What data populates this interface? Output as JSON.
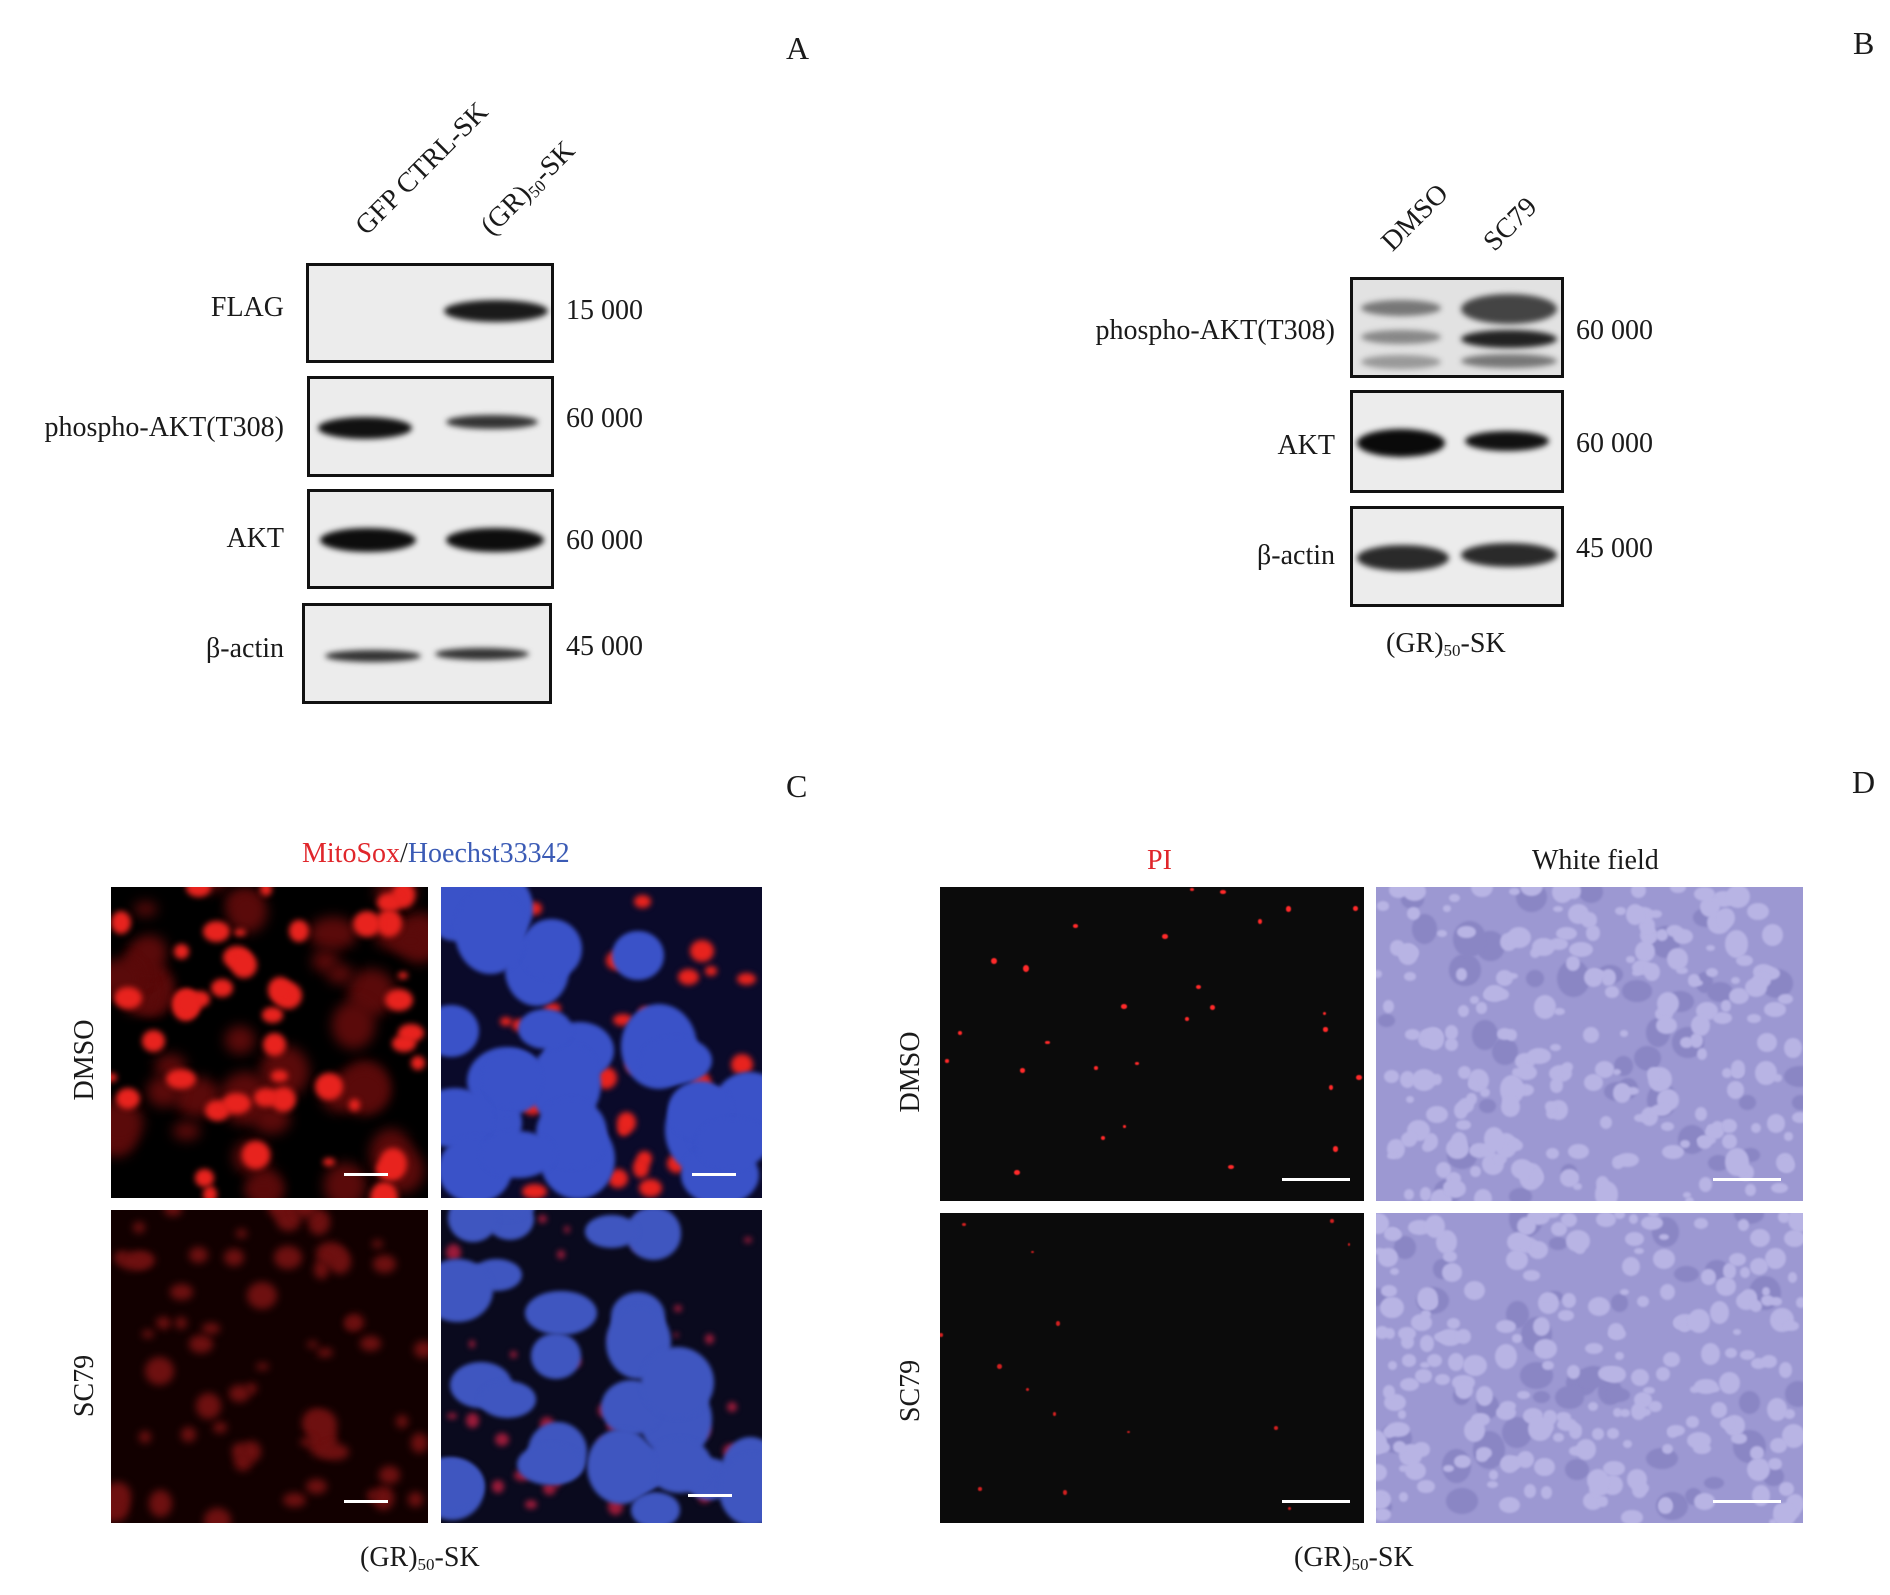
{
  "panels": {
    "A": {
      "label": "A",
      "lanes": [
        "GFP CTRL-SK",
        "(GR)",
        "50",
        "-SK"
      ],
      "lane_labels": {
        "lane1": "GFP CTRL-SK",
        "lane2_pre": "(GR)",
        "lane2_sub": "50",
        "lane2_post": "-SK"
      },
      "blots": [
        {
          "antibody": "FLAG",
          "mw": "15 000"
        },
        {
          "antibody": "phospho-AKT(T308)",
          "mw": "60 000"
        },
        {
          "antibody": "AKT",
          "mw": "60 000"
        },
        {
          "antibody": "β-actin",
          "mw": "45 000"
        }
      ]
    },
    "B": {
      "label": "B",
      "lane_labels": {
        "lane1": "DMSO",
        "lane2": "SC79"
      },
      "blots": [
        {
          "antibody": "phospho-AKT(T308)",
          "mw": "60 000"
        },
        {
          "antibody": "AKT",
          "mw": "60 000"
        },
        {
          "antibody": "β-actin",
          "mw": "45 000"
        }
      ],
      "caption": {
        "pre": "(GR)",
        "sub": "50",
        "post": "-SK"
      }
    },
    "C": {
      "label": "C",
      "title": {
        "part1": "MitoSox",
        "sep": "/",
        "part2": "Hoechst33342"
      },
      "title_colors": {
        "part1": "#e0262b",
        "part2": "#3b5bb5"
      },
      "rows": [
        "DMSO",
        "SC79"
      ],
      "caption": {
        "pre": "(GR)",
        "sub": "50",
        "post": "-SK"
      }
    },
    "D": {
      "label": "D",
      "columns": [
        "PI",
        "White field"
      ],
      "column_colors": {
        "PI": "#e0262b",
        "White field": "#1a1a1a"
      },
      "rows": [
        "DMSO",
        "SC79"
      ],
      "caption": {
        "pre": "(GR)",
        "sub": "50",
        "post": "-SK"
      }
    }
  }
}
